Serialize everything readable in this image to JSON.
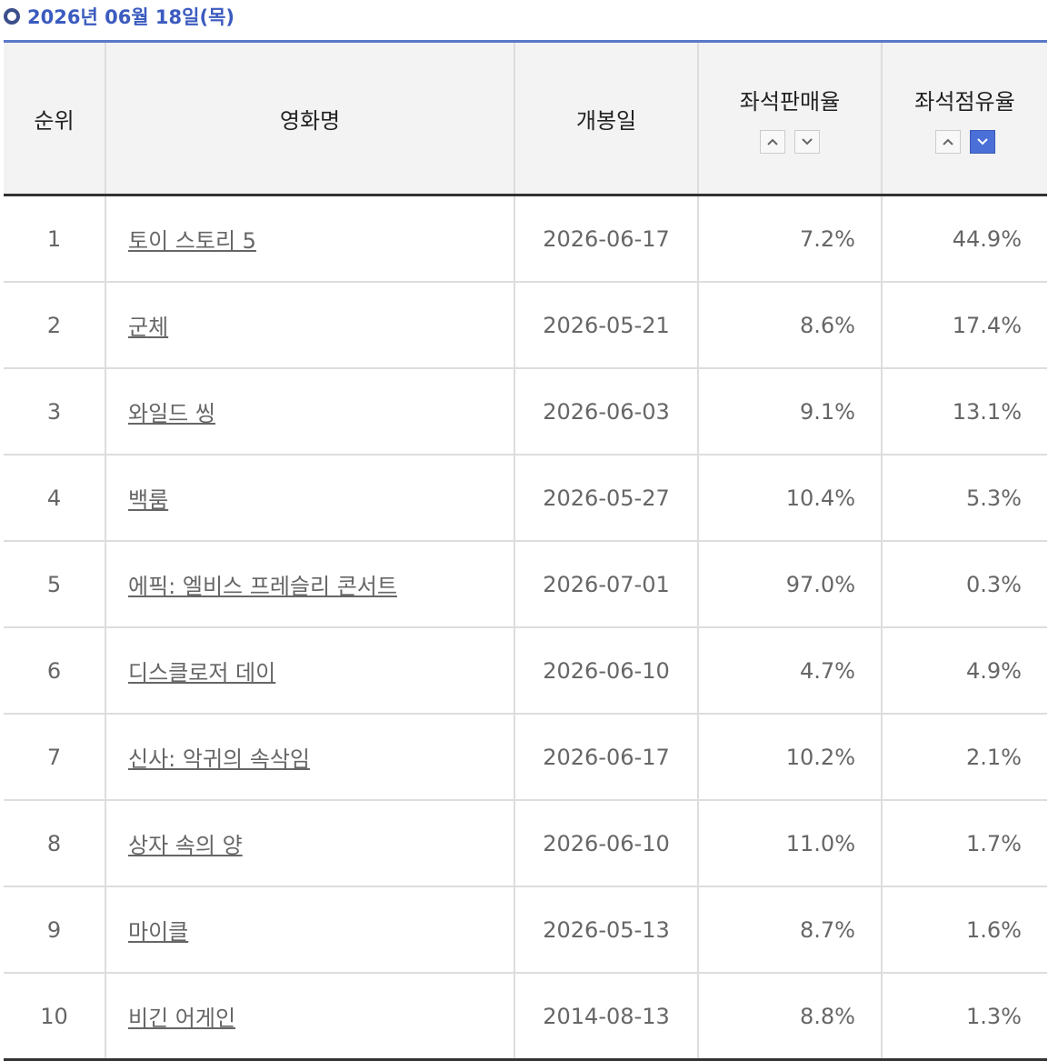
{
  "header": {
    "title": "2026년 06월 18일(목)"
  },
  "table": {
    "columns": [
      "순위",
      "영화명",
      "개봉일",
      "좌석판매율",
      "좌석점유율"
    ],
    "rows": [
      [
        "1",
        "토이 스토리 5",
        "2026-06-17",
        "7.2%",
        "44.9%"
      ],
      [
        "2",
        "군체",
        "2026-05-21",
        "8.6%",
        "17.4%"
      ],
      [
        "3",
        "와일드 씽",
        "2026-06-03",
        "9.1%",
        "13.1%"
      ],
      [
        "4",
        "백룸",
        "2026-05-27",
        "10.4%",
        "5.3%"
      ],
      [
        "5",
        "에픽: 엘비스 프레슬리 콘서트",
        "2026-07-01",
        "97.0%",
        "0.3%"
      ],
      [
        "6",
        "디스클로저 데이",
        "2026-06-10",
        "4.7%",
        "4.9%"
      ],
      [
        "7",
        "신사: 악귀의 속삭임",
        "2026-06-17",
        "10.2%",
        "2.1%"
      ],
      [
        "8",
        "상자 속의 양",
        "2026-06-10",
        "11.0%",
        "1.7%"
      ],
      [
        "9",
        "마이클",
        "2026-05-13",
        "8.7%",
        "1.6%"
      ],
      [
        "10",
        "비긴 어게인",
        "2014-08-13",
        "8.8%",
        "1.3%"
      ]
    ]
  }
}
